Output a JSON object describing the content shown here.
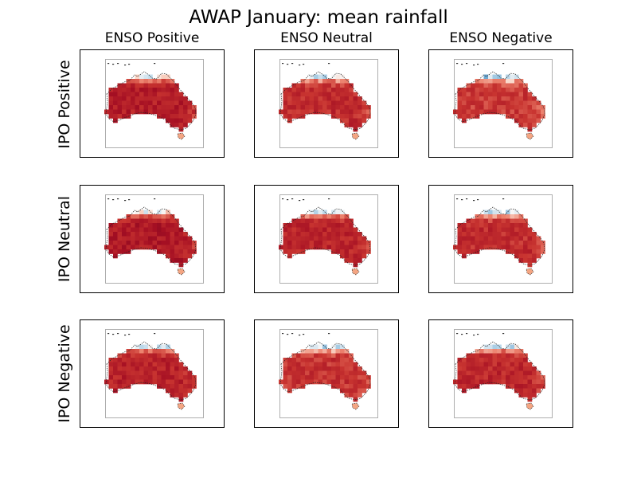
{
  "chart_data": {
    "type": "heatmap",
    "title": "AWAP January: mean rainfall",
    "col_labels": [
      "ENSO Positive",
      "ENSO Neutral",
      "ENSO Negative"
    ],
    "row_labels": [
      "IPO Positive",
      "IPO Neutral",
      "IPO Negative"
    ],
    "colormap": "RdBu (red = low, blue = high)",
    "colors": {
      "dry": "#8e0f1f",
      "mid_dry": "#c8383a",
      "light": "#f4a582",
      "neutral": "#f7f7f7",
      "wet": "#6aa8d1",
      "very_wet": "#08306b"
    },
    "panels": [
      {
        "row": "IPO Positive",
        "col": "ENSO Positive"
      },
      {
        "row": "IPO Positive",
        "col": "ENSO Neutral"
      },
      {
        "row": "IPO Positive",
        "col": "ENSO Negative"
      },
      {
        "row": "IPO Neutral",
        "col": "ENSO Positive"
      },
      {
        "row": "IPO Neutral",
        "col": "ENSO Neutral"
      },
      {
        "row": "IPO Neutral",
        "col": "ENSO Negative"
      },
      {
        "row": "IPO Negative",
        "col": "ENSO Positive"
      },
      {
        "row": "IPO Negative",
        "col": "ENSO Neutral"
      },
      {
        "row": "IPO Negative",
        "col": "ENSO Negative"
      }
    ]
  }
}
